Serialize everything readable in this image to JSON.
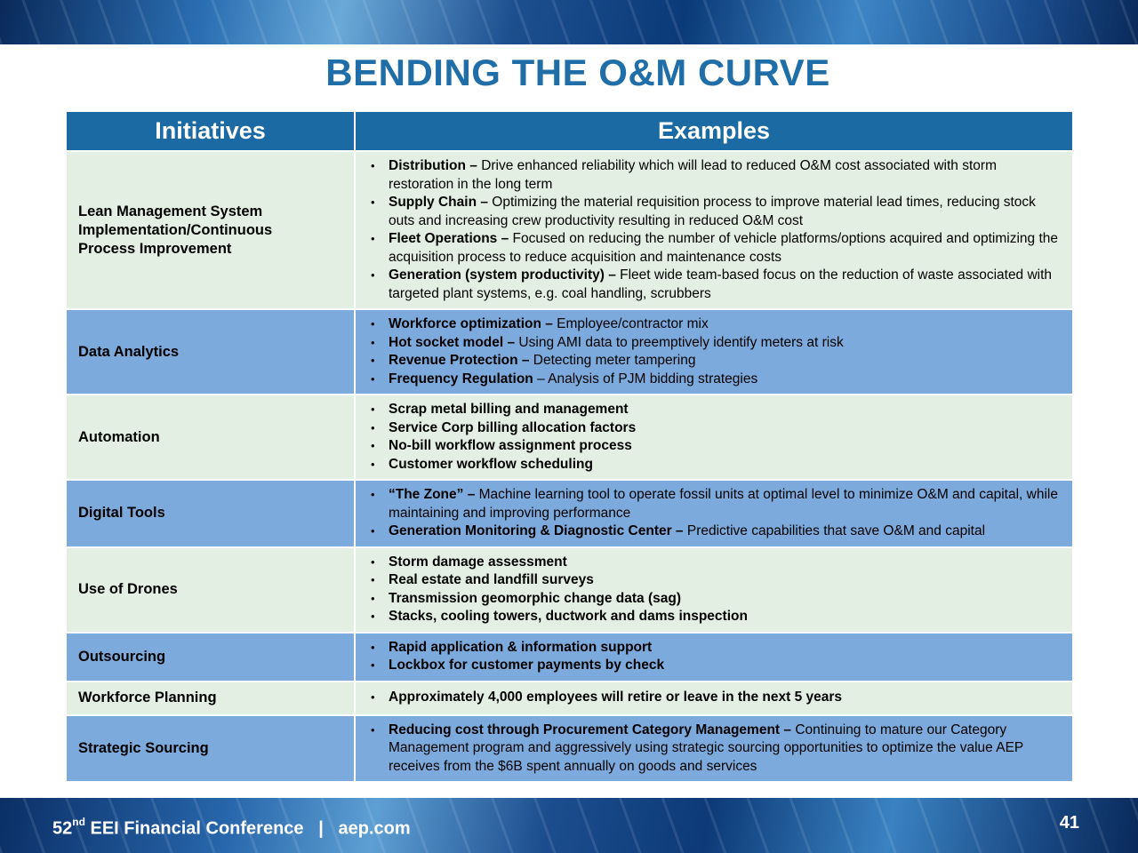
{
  "title": "BENDING THE O&M CURVE",
  "table": {
    "headers": [
      "Initiatives",
      "Examples"
    ],
    "rows": [
      {
        "initiative": "Lean Management System Implementation/Continuous Process Improvement",
        "style": "light",
        "examples": [
          {
            "bold": "Distribution –",
            "text": " Drive enhanced reliability which will lead to reduced O&M cost associated with storm restoration in the long term"
          },
          {
            "bold": "Supply Chain –",
            "text": " Optimizing the material requisition process to improve material lead times, reducing stock outs and increasing crew productivity resulting in reduced O&M cost"
          },
          {
            "bold": "Fleet Operations –",
            "text": " Focused on reducing the number of vehicle platforms/options acquired and optimizing the acquisition process to reduce acquisition and maintenance costs"
          },
          {
            "bold": "Generation (system productivity) –",
            "text": " Fleet wide team-based focus on the reduction of waste associated with targeted plant systems, e.g. coal handling, scrubbers"
          }
        ]
      },
      {
        "initiative": "Data Analytics",
        "style": "blue",
        "examples": [
          {
            "bold": "Workforce optimization –",
            "text": " Employee/contractor mix"
          },
          {
            "bold": "Hot socket model –",
            "text": " Using AMI data to preemptively identify meters at risk"
          },
          {
            "bold": "Revenue Protection –",
            "text": " Detecting meter tampering"
          },
          {
            "bold": "Frequency Regulation",
            "text": " – Analysis of PJM bidding strategies"
          }
        ]
      },
      {
        "initiative": "Automation",
        "style": "light",
        "examples": [
          {
            "bold": "Scrap metal billing and management",
            "text": ""
          },
          {
            "bold": "Service Corp billing allocation factors",
            "text": ""
          },
          {
            "bold": "No-bill workflow assignment process",
            "text": ""
          },
          {
            "bold": "Customer workflow scheduling",
            "text": ""
          }
        ]
      },
      {
        "initiative": "Digital Tools",
        "style": "blue",
        "examples": [
          {
            "bold": "“The Zone” –",
            "text": " Machine learning tool to operate fossil units at optimal level to minimize O&M and capital, while maintaining and improving performance"
          },
          {
            "bold": "Generation Monitoring & Diagnostic Center –",
            "text": " Predictive capabilities that save O&M and capital"
          }
        ]
      },
      {
        "initiative": "Use of Drones",
        "style": "light",
        "examples": [
          {
            "bold": "Storm damage assessment",
            "text": ""
          },
          {
            "bold": "Real estate and landfill surveys",
            "text": ""
          },
          {
            "bold": "Transmission geomorphic change data (sag)",
            "text": ""
          },
          {
            "bold": "Stacks, cooling towers, ductwork and dams inspection",
            "text": ""
          }
        ]
      },
      {
        "initiative": "Outsourcing",
        "style": "blue",
        "examples": [
          {
            "bold": "Rapid application & information support",
            "text": ""
          },
          {
            "bold": "Lockbox for customer payments by check",
            "text": ""
          }
        ]
      },
      {
        "initiative": "Workforce Planning",
        "style": "light",
        "examples": [
          {
            "bold": "Approximately 4,000 employees will retire or leave in the next 5 years",
            "text": ""
          }
        ]
      },
      {
        "initiative": "Strategic Sourcing",
        "style": "blue",
        "examples": [
          {
            "bold": "Reducing cost through Procurement Category Management –",
            "text": " Continuing to mature our Category Management program and aggressively using strategic sourcing opportunities to optimize the value AEP receives from the $6B spent annually on goods and services"
          }
        ]
      }
    ]
  },
  "footer": {
    "conference_num": "52",
    "conference_sup": "nd",
    "conference_rest": " EEI Financial Conference   |   aep.com",
    "page_number": "41"
  },
  "colors": {
    "title": "#1f6ea8",
    "header_bg": "#1c6aa3",
    "row_light": "#e3efe3",
    "row_blue": "#7daadc"
  }
}
